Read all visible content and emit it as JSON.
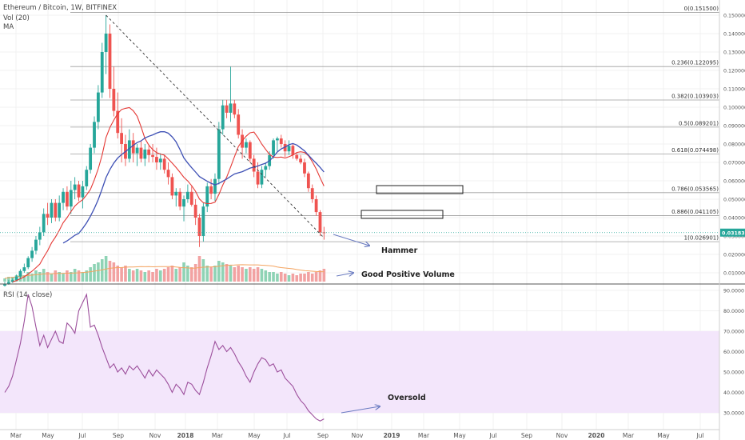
{
  "header": {
    "symbol_line": "Ethereum / Bitcoin, 1W, BITFINEX",
    "vol_label": "Vol (20)",
    "ma_label": "MA"
  },
  "rsi_panel": {
    "label": "RSI (14, close)"
  },
  "colors": {
    "up": "#26a69a",
    "down": "#ef5350",
    "vol_up": "#8fd3b5",
    "vol_down": "#f2a2a2",
    "ma_fast": "#e53935",
    "ma_slow": "#3f51b5",
    "vol_ma": "#f4a460",
    "rsi": "#9c4f9c",
    "rsi_band": "#f3e6fb",
    "last_price": "#26a69a",
    "fib_line": "#9e9e9e",
    "arrow": "#6b7cc1"
  },
  "chart_data": {
    "type": "candlestick",
    "title": "Ethereum / Bitcoin, 1W, BITFINEX",
    "price_axis": {
      "ticks": [
        "0.010000",
        "0.020000",
        "0.030000",
        "0.040000",
        "0.050000",
        "0.060000",
        "0.070000",
        "0.080000",
        "0.090000",
        "0.100000",
        "0.110000",
        "0.120000",
        "0.130000",
        "0.140000",
        "0.150000"
      ],
      "ylim": [
        0.005,
        0.155
      ]
    },
    "rsi_axis": {
      "ticks": [
        "30.0000",
        "40.0000",
        "50.0000",
        "60.0000",
        "70.0000",
        "80.0000",
        "90.0000"
      ],
      "ylim": [
        26,
        92
      ],
      "band": [
        30,
        70
      ]
    },
    "time_labels": [
      "Mar",
      "May",
      "Jul",
      "Sep",
      "Nov",
      "2018",
      "Mar",
      "May",
      "Jul",
      "Sep",
      "Nov",
      "2019",
      "Mar",
      "May",
      "Jul",
      "Sep",
      "Nov",
      "2020",
      "Mar",
      "May",
      "Jul"
    ],
    "last_price": "0.031839",
    "last_price_value": 0.031839,
    "fib_levels": [
      {
        "label": "0(0.151500)",
        "value": 0.1515
      },
      {
        "label": "0.236(0.122095)",
        "value": 0.122095
      },
      {
        "label": "0.382(0.103903)",
        "value": 0.103903
      },
      {
        "label": "0.5(0.089201)",
        "value": 0.089201
      },
      {
        "label": "0.618(0.074498)",
        "value": 0.074498
      },
      {
        "label": "0.786(0.053565)",
        "value": 0.053565
      },
      {
        "label": "0.886(0.041105)",
        "value": 0.041105
      },
      {
        "label": "1(0.026901)",
        "value": 0.026901
      }
    ],
    "annotations": [
      {
        "label": "Hammer"
      },
      {
        "label": "Good Positive Volume"
      },
      {
        "label": "Oversold"
      }
    ],
    "candles": [
      [
        0.003,
        0.005,
        0.0025,
        0.004
      ],
      [
        0.004,
        0.006,
        0.0035,
        0.005
      ],
      [
        0.005,
        0.007,
        0.0045,
        0.006
      ],
      [
        0.006,
        0.009,
        0.0055,
        0.008
      ],
      [
        0.008,
        0.012,
        0.007,
        0.011
      ],
      [
        0.011,
        0.015,
        0.01,
        0.013
      ],
      [
        0.013,
        0.019,
        0.012,
        0.018
      ],
      [
        0.018,
        0.024,
        0.016,
        0.022
      ],
      [
        0.022,
        0.03,
        0.02,
        0.028
      ],
      [
        0.028,
        0.035,
        0.025,
        0.032
      ],
      [
        0.032,
        0.045,
        0.03,
        0.042
      ],
      [
        0.042,
        0.048,
        0.036,
        0.04
      ],
      [
        0.04,
        0.05,
        0.037,
        0.048
      ],
      [
        0.048,
        0.05,
        0.038,
        0.04
      ],
      [
        0.04,
        0.052,
        0.038,
        0.048
      ],
      [
        0.048,
        0.056,
        0.044,
        0.054
      ],
      [
        0.054,
        0.057,
        0.044,
        0.046
      ],
      [
        0.046,
        0.06,
        0.042,
        0.055
      ],
      [
        0.055,
        0.062,
        0.05,
        0.058
      ],
      [
        0.058,
        0.06,
        0.049,
        0.051
      ],
      [
        0.051,
        0.06,
        0.045,
        0.057
      ],
      [
        0.057,
        0.068,
        0.055,
        0.066
      ],
      [
        0.066,
        0.08,
        0.064,
        0.078
      ],
      [
        0.078,
        0.095,
        0.075,
        0.092
      ],
      [
        0.092,
        0.112,
        0.088,
        0.108
      ],
      [
        0.108,
        0.135,
        0.105,
        0.13
      ],
      [
        0.13,
        0.15,
        0.118,
        0.14
      ],
      [
        0.14,
        0.145,
        0.105,
        0.11
      ],
      [
        0.11,
        0.122,
        0.095,
        0.098
      ],
      [
        0.098,
        0.108,
        0.083,
        0.086
      ],
      [
        0.086,
        0.094,
        0.07,
        0.08
      ],
      [
        0.08,
        0.085,
        0.068,
        0.072
      ],
      [
        0.072,
        0.088,
        0.07,
        0.082
      ],
      [
        0.082,
        0.086,
        0.07,
        0.075
      ],
      [
        0.075,
        0.08,
        0.068,
        0.078
      ],
      [
        0.078,
        0.082,
        0.07,
        0.072
      ],
      [
        0.072,
        0.08,
        0.068,
        0.077
      ],
      [
        0.077,
        0.079,
        0.07,
        0.074
      ],
      [
        0.074,
        0.08,
        0.07,
        0.073
      ],
      [
        0.073,
        0.078,
        0.066,
        0.07
      ],
      [
        0.07,
        0.075,
        0.066,
        0.072
      ],
      [
        0.072,
        0.074,
        0.064,
        0.066
      ],
      [
        0.066,
        0.07,
        0.058,
        0.062
      ],
      [
        0.062,
        0.064,
        0.05,
        0.052
      ],
      [
        0.052,
        0.056,
        0.046,
        0.054
      ],
      [
        0.054,
        0.056,
        0.044,
        0.046
      ],
      [
        0.046,
        0.052,
        0.038,
        0.05
      ],
      [
        0.05,
        0.058,
        0.048,
        0.054
      ],
      [
        0.054,
        0.057,
        0.046,
        0.047
      ],
      [
        0.047,
        0.05,
        0.036,
        0.04
      ],
      [
        0.04,
        0.042,
        0.024,
        0.03
      ],
      [
        0.03,
        0.048,
        0.027,
        0.046
      ],
      [
        0.046,
        0.059,
        0.043,
        0.057
      ],
      [
        0.057,
        0.061,
        0.05,
        0.053
      ],
      [
        0.053,
        0.064,
        0.049,
        0.061
      ],
      [
        0.061,
        0.092,
        0.058,
        0.088
      ],
      [
        0.088,
        0.104,
        0.085,
        0.101
      ],
      [
        0.101,
        0.104,
        0.094,
        0.097
      ],
      [
        0.097,
        0.122,
        0.092,
        0.102
      ],
      [
        0.102,
        0.104,
        0.094,
        0.096
      ],
      [
        0.096,
        0.099,
        0.083,
        0.085
      ],
      [
        0.085,
        0.088,
        0.072,
        0.078
      ],
      [
        0.078,
        0.083,
        0.075,
        0.081
      ],
      [
        0.081,
        0.082,
        0.07,
        0.072
      ],
      [
        0.072,
        0.074,
        0.062,
        0.065
      ],
      [
        0.065,
        0.07,
        0.056,
        0.058
      ],
      [
        0.058,
        0.068,
        0.056,
        0.066
      ],
      [
        0.066,
        0.07,
        0.062,
        0.068
      ],
      [
        0.068,
        0.076,
        0.066,
        0.074
      ],
      [
        0.074,
        0.083,
        0.072,
        0.082
      ],
      [
        0.082,
        0.084,
        0.076,
        0.083
      ],
      [
        0.083,
        0.085,
        0.078,
        0.08
      ],
      [
        0.08,
        0.082,
        0.073,
        0.076
      ],
      [
        0.076,
        0.082,
        0.074,
        0.079
      ],
      [
        0.079,
        0.08,
        0.072,
        0.074
      ],
      [
        0.074,
        0.075,
        0.071,
        0.072
      ],
      [
        0.072,
        0.074,
        0.069,
        0.07
      ],
      [
        0.07,
        0.072,
        0.062,
        0.064
      ],
      [
        0.064,
        0.065,
        0.054,
        0.056
      ],
      [
        0.056,
        0.058,
        0.048,
        0.05
      ],
      [
        0.05,
        0.052,
        0.041,
        0.043
      ],
      [
        0.043,
        0.044,
        0.03,
        0.032
      ],
      [
        0.032,
        0.035,
        0.028,
        0.0318
      ]
    ],
    "volume": [
      2,
      3,
      3,
      4,
      5,
      4,
      6,
      5,
      7,
      6,
      8,
      6,
      5,
      7,
      6,
      5,
      7,
      6,
      8,
      7,
      6,
      7,
      9,
      11,
      12,
      14,
      16,
      13,
      12,
      10,
      9,
      10,
      8,
      7,
      8,
      7,
      6,
      7,
      6,
      8,
      7,
      8,
      9,
      10,
      8,
      9,
      12,
      10,
      9,
      11,
      16,
      14,
      10,
      9,
      10,
      13,
      12,
      11,
      10,
      9,
      10,
      9,
      8,
      9,
      8,
      9,
      8,
      7,
      6,
      6,
      5,
      6,
      5,
      4,
      5,
      4,
      5,
      5,
      6,
      5,
      6,
      7,
      8
    ],
    "rsi": [
      40,
      43,
      48,
      56,
      64,
      75,
      88,
      82,
      72,
      63,
      68,
      62,
      66,
      70,
      65,
      64,
      74,
      72,
      69,
      80,
      84,
      88,
      72,
      73,
      68,
      62,
      57,
      52,
      54,
      50,
      52,
      49,
      53,
      51,
      53,
      50,
      47,
      51,
      48,
      51,
      49,
      47,
      44,
      40,
      44,
      42,
      39,
      45,
      44,
      41,
      39,
      45,
      52,
      58,
      65,
      61,
      63,
      60,
      62,
      59,
      55,
      52,
      48,
      45,
      50,
      54,
      57,
      56,
      53,
      54,
      50,
      51,
      47,
      45,
      43,
      39,
      36,
      34,
      31,
      29,
      27,
      26,
      27
    ]
  }
}
